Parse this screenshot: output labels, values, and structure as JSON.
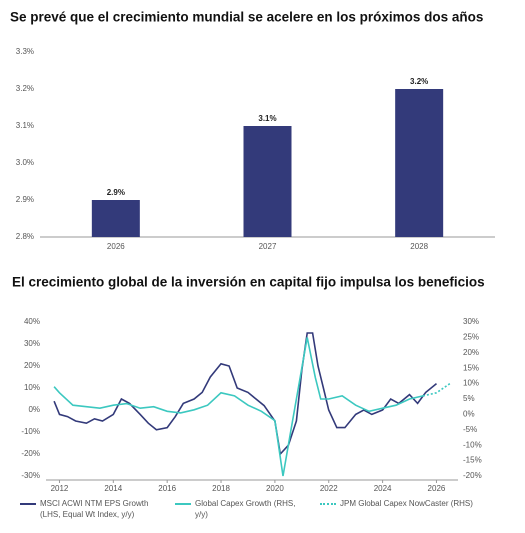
{
  "chart_data": [
    {
      "type": "bar",
      "title": "Se prevé que el crecimiento mundial se acelere en los próximos dos años",
      "categories": [
        "2026",
        "2027",
        "2028"
      ],
      "values": [
        2.9,
        3.1,
        3.2
      ],
      "value_labels": [
        "2.9%",
        "3.1%",
        "3.2%"
      ],
      "color": "#333a7a",
      "ylim": [
        2.8,
        3.3
      ],
      "yticks": [
        {
          "value": 2.8,
          "label": "2.8%"
        },
        {
          "value": 2.9,
          "label": "2.9%"
        },
        {
          "value": 3.0,
          "label": "3.0%"
        },
        {
          "value": 3.1,
          "label": "3.1%"
        },
        {
          "value": 3.2,
          "label": "3.2%"
        },
        {
          "value": 3.3,
          "label": "3.3%"
        }
      ],
      "grid": false
    },
    {
      "type": "line",
      "title": "El crecimiento global de la inversión en capital fijo impulsa los beneficios",
      "xlim": [
        2011.5,
        2026.8
      ],
      "xticks": [
        2012,
        2014,
        2016,
        2018,
        2020,
        2022,
        2024,
        2026
      ],
      "ylim": [
        -30,
        40
      ],
      "yticks": [
        {
          "value": -30,
          "label": "-30%"
        },
        {
          "value": -20,
          "label": "-20%"
        },
        {
          "value": -10,
          "label": "-10%"
        },
        {
          "value": 0,
          "label": "0%"
        },
        {
          "value": 10,
          "label": "10%"
        },
        {
          "value": 20,
          "label": "20%"
        },
        {
          "value": 30,
          "label": "30%"
        },
        {
          "value": 40,
          "label": "40%"
        }
      ],
      "y2lim": [
        -20,
        30
      ],
      "y2ticks": [
        {
          "value": -20,
          "label": "-20%"
        },
        {
          "value": -15,
          "label": "-15%"
        },
        {
          "value": -10,
          "label": "-10%"
        },
        {
          "value": -5,
          "label": "-5%"
        },
        {
          "value": 0,
          "label": "0%"
        },
        {
          "value": 5,
          "label": "5%"
        },
        {
          "value": 10,
          "label": "10%"
        },
        {
          "value": 15,
          "label": "15%"
        },
        {
          "value": 20,
          "label": "20%"
        },
        {
          "value": 25,
          "label": "25%"
        },
        {
          "value": 30,
          "label": "30%"
        }
      ],
      "legend": "bottom",
      "series": [
        {
          "name": "MSCI ACWI NTM EPS Growth (LHS, Equal Wt Index, y/y)",
          "color": "#333a7a",
          "dash": false,
          "x": [
            2011.8,
            2012,
            2012.3,
            2012.6,
            2013,
            2013.3,
            2013.6,
            2014,
            2014.3,
            2014.6,
            2015,
            2015.3,
            2015.6,
            2016,
            2016.3,
            2016.6,
            2017,
            2017.3,
            2017.6,
            2018,
            2018.3,
            2018.6,
            2019,
            2019.3,
            2019.6,
            2020,
            2020.2,
            2020.5,
            2020.8,
            2021,
            2021.2,
            2021.4,
            2021.6,
            2021.8,
            2022,
            2022.3,
            2022.6,
            2023,
            2023.3,
            2023.6,
            2024,
            2024.3,
            2024.6,
            2025,
            2025.3,
            2025.6,
            2026
          ],
          "values": [
            4,
            -2,
            -3,
            -5,
            -6,
            -4,
            -5,
            -2,
            5,
            3,
            -2,
            -6,
            -9,
            -8,
            -3,
            3,
            5,
            8,
            15,
            21,
            20,
            10,
            8,
            5,
            2,
            -5,
            -20,
            -16,
            -5,
            18,
            35,
            35,
            20,
            10,
            0,
            -8,
            -8,
            -2,
            0,
            -2,
            0,
            5,
            3,
            7,
            3,
            8,
            12
          ]
        },
        {
          "name": "Global Capex Growth (RHS, y/y)",
          "color": "#3cc8c0",
          "dash": false,
          "axis": "y2",
          "x": [
            2011.8,
            2012,
            2012.5,
            2013,
            2013.5,
            2014,
            2014.5,
            2015,
            2015.5,
            2016,
            2016.5,
            2017,
            2017.5,
            2018,
            2018.5,
            2019,
            2019.5,
            2020,
            2020.3,
            2020.6,
            2021,
            2021.2,
            2021.5,
            2021.7,
            2022,
            2022.5,
            2023,
            2023.5,
            2024,
            2024.5,
            2025,
            2025.5
          ],
          "values": [
            9,
            7,
            3,
            2.5,
            2,
            3,
            3.5,
            2,
            2.5,
            1,
            0.5,
            1.5,
            3,
            7,
            6,
            3,
            1,
            -2,
            -20,
            -5,
            15,
            25,
            12,
            5,
            5,
            6,
            3,
            1,
            2,
            3,
            5,
            6
          ]
        },
        {
          "name": "JPM Global Capex NowCaster (RHS)",
          "color": "#3cc8c0",
          "dash": true,
          "axis": "y2",
          "x": [
            2025.5,
            2026,
            2026.5
          ],
          "values": [
            6,
            7,
            10
          ]
        }
      ]
    }
  ]
}
